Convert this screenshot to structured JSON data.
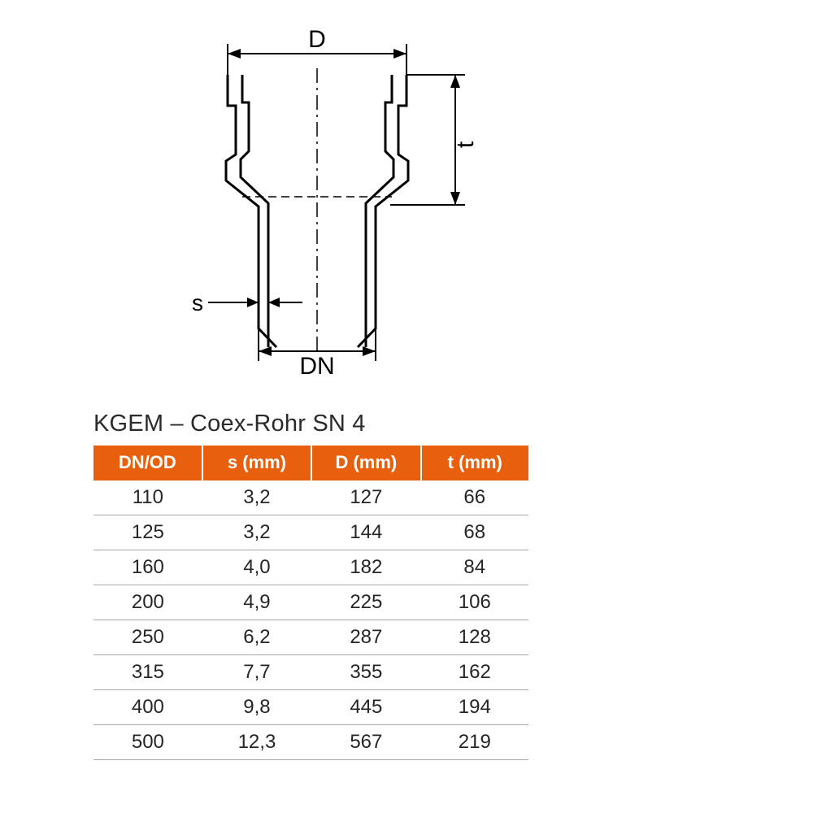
{
  "diagram": {
    "labels": {
      "D": "D",
      "t": "t",
      "s": "s",
      "DN": "DN"
    },
    "stroke": "#000000",
    "dim_line_width": 2,
    "outline_width": 3,
    "font_size_main": 30,
    "font_size_s": 28
  },
  "table": {
    "title": "KGEM – Coex-Rohr SN 4",
    "header_bg": "#e8600e",
    "header_fg": "#ffffff",
    "row_border": "#a8a8a8",
    "text_color": "#262626",
    "columns": [
      "DN/OD",
      "s (mm)",
      "D (mm)",
      "t (mm)"
    ],
    "rows": [
      [
        "110",
        "3,2",
        "127",
        "66"
      ],
      [
        "125",
        "3,2",
        "144",
        "68"
      ],
      [
        "160",
        "4,0",
        "182",
        "84"
      ],
      [
        "200",
        "4,9",
        "225",
        "106"
      ],
      [
        "250",
        "6,2",
        "287",
        "128"
      ],
      [
        "315",
        "7,7",
        "355",
        "162"
      ],
      [
        "400",
        "9,8",
        "445",
        "194"
      ],
      [
        "500",
        "12,3",
        "567",
        "219"
      ]
    ]
  }
}
